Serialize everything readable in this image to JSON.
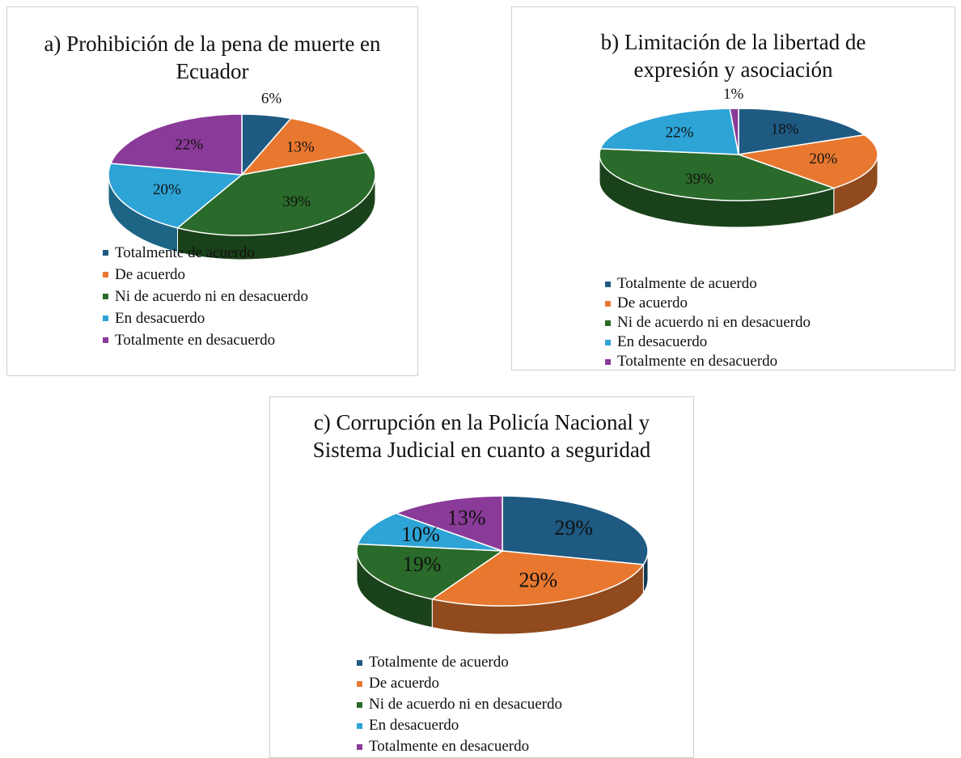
{
  "chart_data": [
    {
      "type": "pie",
      "title": "a) Prohibición de la pena de muerte en Ecuador",
      "categories": [
        "Totalmente de acuerdo",
        "De acuerdo",
        "Ni de acuerdo ni en desacuerdo",
        "En desacuerdo",
        "Totalmente en desacuerdo"
      ],
      "values": [
        6,
        13,
        39,
        20,
        22
      ],
      "value_labels": [
        "6%",
        "13%",
        "39%",
        "20%",
        "22%"
      ],
      "colors": [
        "#1f5a82",
        "#e8782f",
        "#2a6a2a",
        "#2da3d6",
        "#8a3a98"
      ]
    },
    {
      "type": "pie",
      "title": "b) Limitación de la libertad de expresión y asociación",
      "categories": [
        "Totalmente de acuerdo",
        "De acuerdo",
        "Ni de acuerdo ni en desacuerdo",
        "En desacuerdo",
        "Totalmente en desacuerdo"
      ],
      "values": [
        18,
        20,
        39,
        22,
        1
      ],
      "value_labels": [
        "18%",
        "20%",
        "39%",
        "22%",
        "1%"
      ],
      "colors": [
        "#1f5a82",
        "#e8782f",
        "#2a6a2a",
        "#2da3d6",
        "#8a3a98"
      ]
    },
    {
      "type": "pie",
      "title": "c) Corrupción en la Policía Nacional y Sistema Judicial en cuanto a seguridad",
      "categories": [
        "Totalmente de acuerdo",
        "De acuerdo",
        "Ni de acuerdo ni en desacuerdo",
        "En desacuerdo",
        "Totalmente en desacuerdo"
      ],
      "values": [
        29,
        29,
        19,
        10,
        13
      ],
      "value_labels": [
        "29%",
        "29%",
        "19%",
        "10%",
        "13%"
      ],
      "colors": [
        "#1f5a82",
        "#e8782f",
        "#2a6a2a",
        "#2da3d6",
        "#8a3a98"
      ]
    }
  ]
}
